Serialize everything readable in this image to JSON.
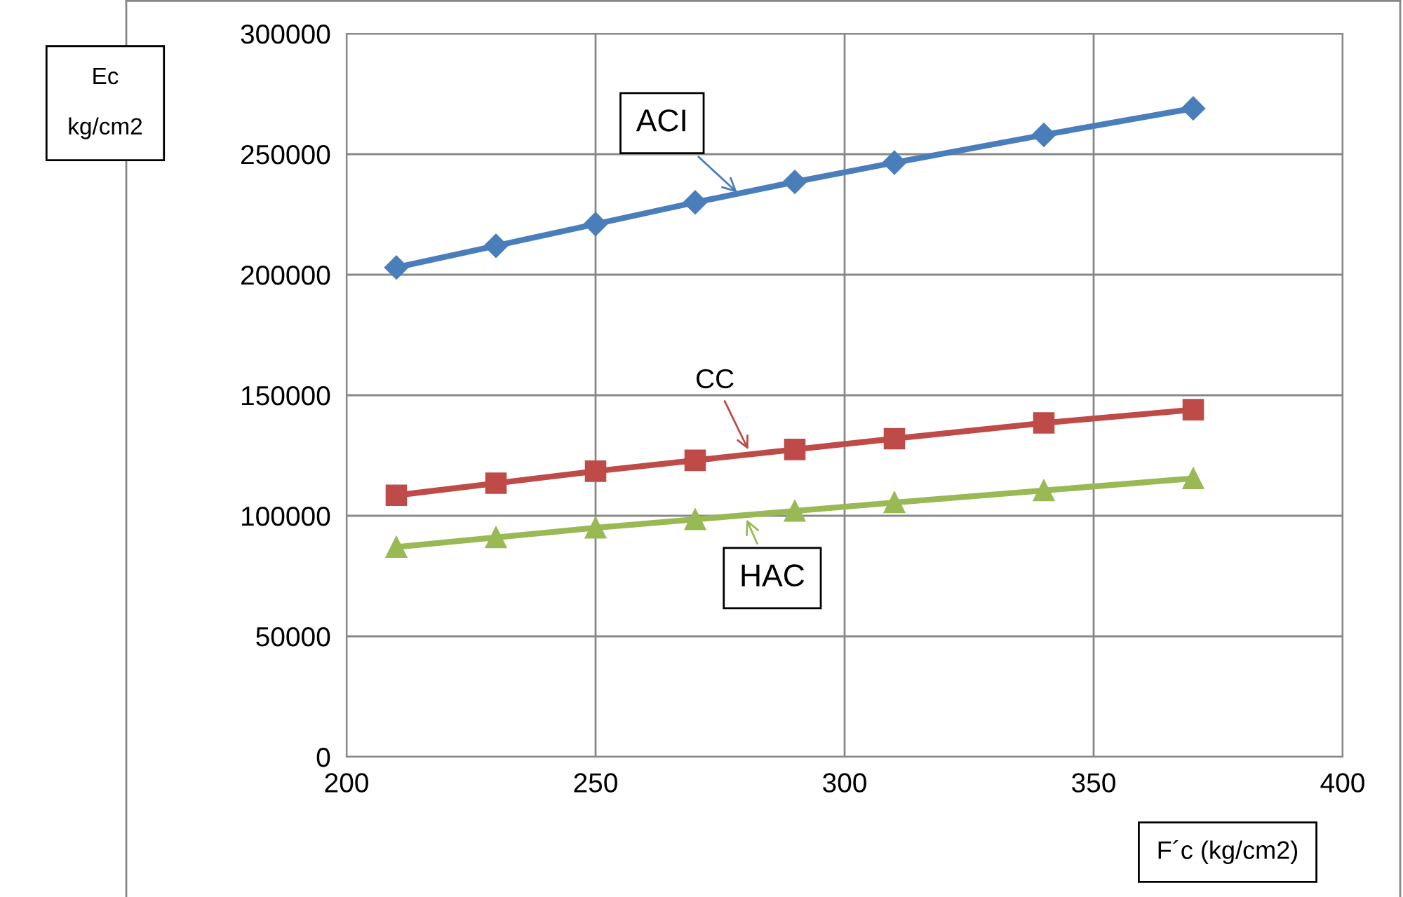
{
  "chart_data": {
    "type": "line",
    "xlabel": "F´c (kg/cm2)",
    "ylabel": "Ec\n\nkg/cm2",
    "x": [
      210,
      230,
      250,
      270,
      290,
      310,
      340,
      370
    ],
    "series": [
      {
        "color": "#4a7ebb",
        "marker": "diamond",
        "values": [
          203000,
          212000,
          221000,
          230000,
          238500,
          246500,
          258000,
          269000
        ]
      },
      {
        "color": "#be4b48",
        "marker": "square",
        "values": [
          108500,
          113500,
          118500,
          123000,
          127500,
          132000,
          138500,
          144000
        ]
      },
      {
        "color": "#98b954",
        "marker": "triangle",
        "values": [
          87000,
          91000,
          95000,
          98500,
          102000,
          105500,
          110500,
          115500
        ]
      }
    ],
    "annotations": [
      {
        "text": "ACI",
        "x": 279,
        "y": 233000
      },
      {
        "text": "CC",
        "x": 281,
        "y": 126000
      },
      {
        "text": "HAC",
        "x": 280,
        "y": 100000
      }
    ],
    "xlim": [
      200,
      400
    ],
    "xticks": [
      200,
      250,
      300,
      350,
      400
    ],
    "ylim": [
      0,
      300000
    ],
    "yticks": [
      0,
      50000,
      100000,
      150000,
      200000,
      250000,
      300000
    ],
    "grid": true,
    "legend": false
  }
}
